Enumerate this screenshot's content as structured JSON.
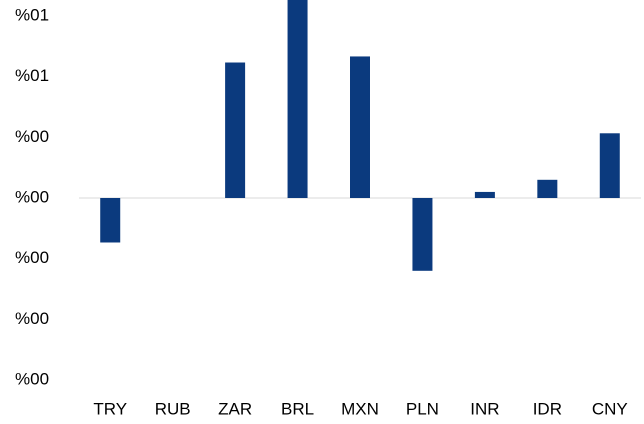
{
  "chart_data": {
    "type": "bar",
    "categories": [
      "TRY",
      "RUB",
      "ZAR",
      "BRL",
      "MXN",
      "PLN",
      "INR",
      "IDR",
      "CNY"
    ],
    "values": [
      -0.22,
      0,
      0.67,
      1.02,
      0.7,
      -0.36,
      0.03,
      0.09,
      0.32
    ],
    "color": "#0b3a7e",
    "ylim": [
      -0.9,
      0.9
    ],
    "yticks": [
      {
        "value": 0.9,
        "label": "%01"
      },
      {
        "value": 0.6,
        "label": "%01"
      },
      {
        "value": 0.3,
        "label": "%00"
      },
      {
        "value": 0,
        "label": "%00"
      },
      {
        "value": -0.3,
        "label": "%00"
      },
      {
        "value": -0.6,
        "label": "%00"
      },
      {
        "value": -0.9,
        "label": "%00"
      }
    ],
    "grid": false
  }
}
